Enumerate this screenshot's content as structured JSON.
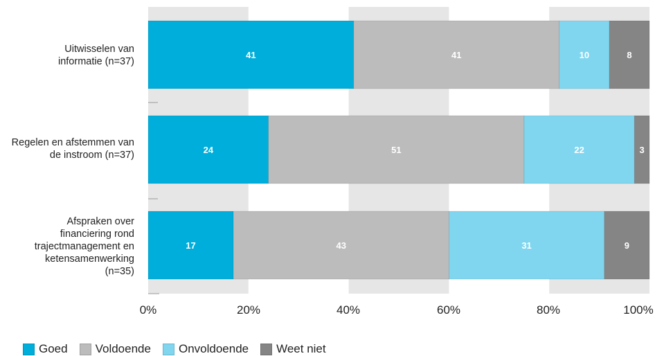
{
  "chart_data": {
    "type": "bar",
    "orientation": "horizontal",
    "stacked": true,
    "categories": [
      "Uitwisselen van informatie (n=37)",
      "Regelen en afstemmen van de instroom (n=37)",
      "Afspraken over financiering rond trajectmanagement en ketensamenwerking (n=35)"
    ],
    "category_lines": [
      [
        "Uitwisselen van",
        "informatie (n=37)"
      ],
      [
        "Regelen en afstemmen van",
        "de instroom (n=37)"
      ],
      [
        "Afspraken over",
        "financiering rond",
        "trajectmanagement en",
        "ketensamenwerking",
        "(n=35)"
      ]
    ],
    "series": [
      {
        "name": "Goed",
        "color": "#00aedb",
        "values": [
          41,
          24,
          17
        ]
      },
      {
        "name": "Voldoende",
        "color": "#bcbcbc",
        "values": [
          41,
          51,
          43
        ]
      },
      {
        "name": "Onvoldoende",
        "color": "#80d6ef",
        "values": [
          10,
          22,
          31
        ]
      },
      {
        "name": "Weet niet",
        "color": "#858585",
        "values": [
          8,
          3,
          9
        ]
      }
    ],
    "xlim": [
      0,
      100
    ],
    "x_ticks": [
      "0%",
      "20%",
      "40%",
      "60%",
      "80%",
      "100%"
    ],
    "x_tick_values": [
      0,
      20,
      40,
      60,
      80,
      100
    ],
    "grid": "alternating vertical bands",
    "band_color": "#e6e6e6",
    "legend_position": "bottom-left"
  }
}
